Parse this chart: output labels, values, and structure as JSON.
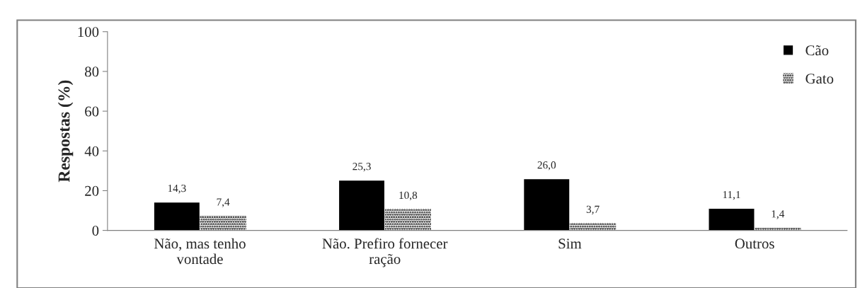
{
  "chart_data": {
    "type": "bar",
    "ylabel": "Respostas (%)",
    "categories": [
      "Não, mas tenho\nvontade",
      "Não. Prefiro fornecer\nração",
      "Sim",
      "Outros"
    ],
    "series": [
      {
        "name": "Cão",
        "color": "#000000",
        "values": [
          14.3,
          25.3,
          26.0,
          11.1
        ],
        "value_labels": [
          "14,3",
          "25,3",
          "26,0",
          "11,1"
        ]
      },
      {
        "name": "Gato",
        "color": "#000000",
        "values": [
          7.4,
          10.8,
          3.7,
          1.4
        ],
        "value_labels": [
          "7,4",
          "10,8",
          "3,7",
          "1,4"
        ]
      }
    ],
    "ylim": [
      0,
      100
    ],
    "yticks": [
      0,
      20,
      40,
      60,
      80,
      100
    ],
    "grid": false,
    "legend": "top right"
  }
}
